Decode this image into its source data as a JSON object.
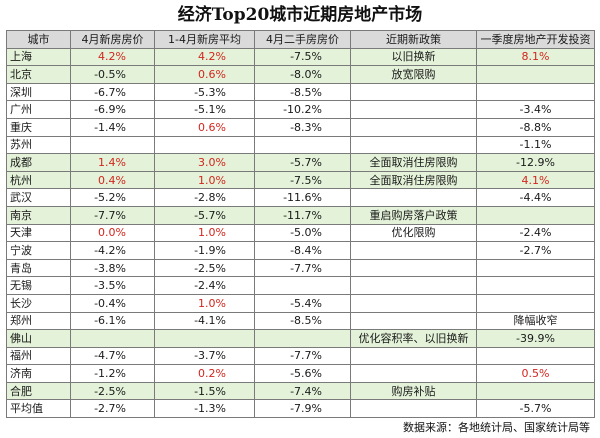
{
  "title": "经济Top20城市近期房地产市场",
  "columns": [
    "城市",
    "4月新房房价",
    "1-4月新房平均",
    "4月二手房房价",
    "近期新政策",
    "一季度房地产开发投资"
  ],
  "rows": [
    {
      "city": "上海",
      "c1": "4.2%",
      "c1r": true,
      "c2": "4.2%",
      "c2r": true,
      "c3": "-7.5%",
      "policy": "以旧换新",
      "inv": "8.1%",
      "invr": true,
      "hl": true
    },
    {
      "city": "北京",
      "c1": "-0.5%",
      "c2": "0.6%",
      "c2r": true,
      "c3": "-8.0%",
      "policy": "放宽限购",
      "inv": "",
      "hl": true
    },
    {
      "city": "深圳",
      "c1": "-6.7%",
      "c2": "-5.3%",
      "c3": "-8.5%",
      "policy": "",
      "inv": ""
    },
    {
      "city": "广州",
      "c1": "-6.9%",
      "c2": "-5.1%",
      "c3": "-10.2%",
      "policy": "",
      "inv": "-3.4%"
    },
    {
      "city": "重庆",
      "c1": "-1.4%",
      "c2": "0.6%",
      "c2r": true,
      "c3": "-8.3%",
      "policy": "",
      "inv": "-8.8%"
    },
    {
      "city": "苏州",
      "c1": "",
      "c2": "",
      "c3": "",
      "policy": "",
      "inv": "-1.1%"
    },
    {
      "city": "成都",
      "c1": "1.4%",
      "c1r": true,
      "c2": "3.0%",
      "c2r": true,
      "c3": "-5.7%",
      "policy": "全面取消住房限购",
      "inv": "-12.9%",
      "hl": true
    },
    {
      "city": "杭州",
      "c1": "0.4%",
      "c1r": true,
      "c2": "1.0%",
      "c2r": true,
      "c3": "-7.5%",
      "policy": "全面取消住房限购",
      "inv": "4.1%",
      "invr": true,
      "hl": true
    },
    {
      "city": "武汉",
      "c1": "-5.2%",
      "c2": "-2.8%",
      "c3": "-11.6%",
      "policy": "",
      "inv": "-4.4%"
    },
    {
      "city": "南京",
      "c1": "-7.7%",
      "c2": "-5.7%",
      "c3": "-11.7%",
      "policy": "重启购房落户政策",
      "inv": "",
      "hl": true
    },
    {
      "city": "天津",
      "c1": "0.0%",
      "c1r": true,
      "c2": "1.0%",
      "c2r": true,
      "c3": "-5.0%",
      "policy": "优化限购",
      "inv": "-2.4%"
    },
    {
      "city": "宁波",
      "c1": "-4.2%",
      "c2": "-1.9%",
      "c3": "-8.4%",
      "policy": "",
      "inv": "-2.7%"
    },
    {
      "city": "青岛",
      "c1": "-3.8%",
      "c2": "-2.5%",
      "c3": "-7.7%",
      "policy": "",
      "inv": ""
    },
    {
      "city": "无锡",
      "c1": "-3.5%",
      "c2": "-2.4%",
      "c3": "",
      "policy": "",
      "inv": ""
    },
    {
      "city": "长沙",
      "c1": "-0.4%",
      "c2": "1.0%",
      "c2r": true,
      "c3": "-5.4%",
      "policy": "",
      "inv": ""
    },
    {
      "city": "郑州",
      "c1": "-6.1%",
      "c2": "-4.1%",
      "c3": "-8.5%",
      "policy": "",
      "inv": "降幅收窄"
    },
    {
      "city": "佛山",
      "c1": "",
      "c2": "",
      "c3": "",
      "policy": "优化容积率、以旧换新",
      "inv": "-39.9%",
      "hl": true
    },
    {
      "city": "福州",
      "c1": "-4.7%",
      "c2": "-3.7%",
      "c3": "-7.7%",
      "policy": "",
      "inv": ""
    },
    {
      "city": "济南",
      "c1": "-1.2%",
      "c2": "0.2%",
      "c2r": true,
      "c3": "-5.6%",
      "policy": "",
      "inv": "0.5%",
      "invr": true
    },
    {
      "city": "合肥",
      "c1": "-2.5%",
      "c2": "-1.5%",
      "c3": "-7.4%",
      "policy": "购房补贴",
      "inv": "",
      "hl": true
    },
    {
      "city": "平均值",
      "c1": "-2.7%",
      "c2": "-1.3%",
      "c3": "-7.9%",
      "policy": "",
      "inv": "-5.7%"
    }
  ],
  "source": "数据来源：各地统计局、国家统计局等"
}
